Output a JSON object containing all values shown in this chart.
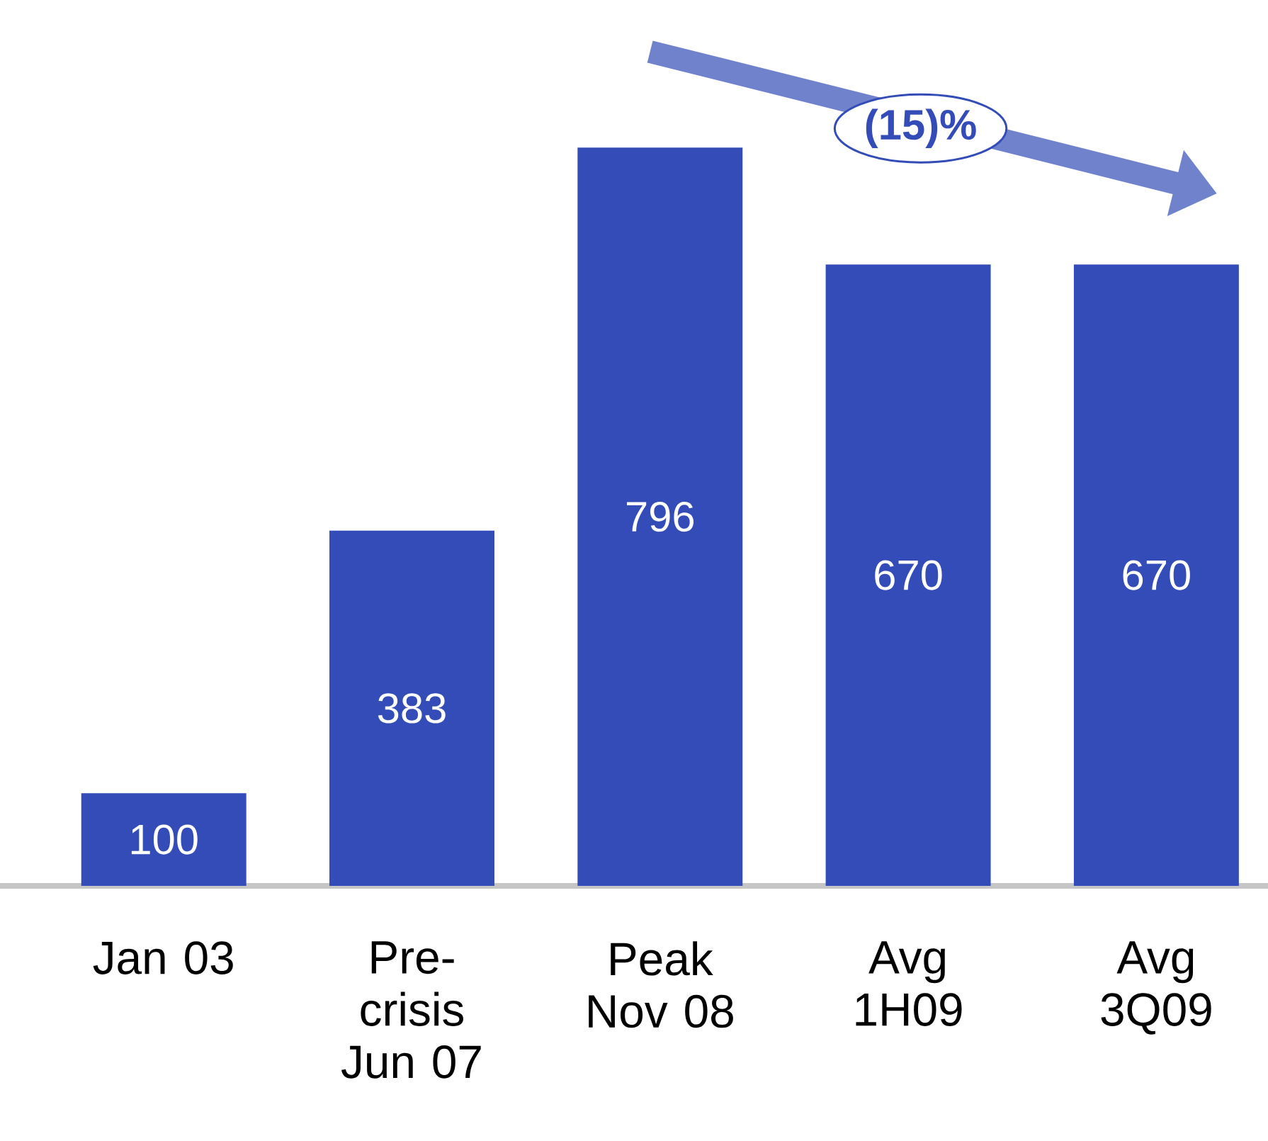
{
  "chart_data": {
    "type": "bar",
    "categories": [
      "Jan 03",
      "Pre-crisis Jun 07",
      "Peak Nov 08",
      "Avg 1H09",
      "Avg 3Q09"
    ],
    "values": [
      100,
      383,
      796,
      670,
      670
    ],
    "color": "#344cb7",
    "data_labels": true,
    "annotations": [
      "(15)%"
    ]
  }
}
